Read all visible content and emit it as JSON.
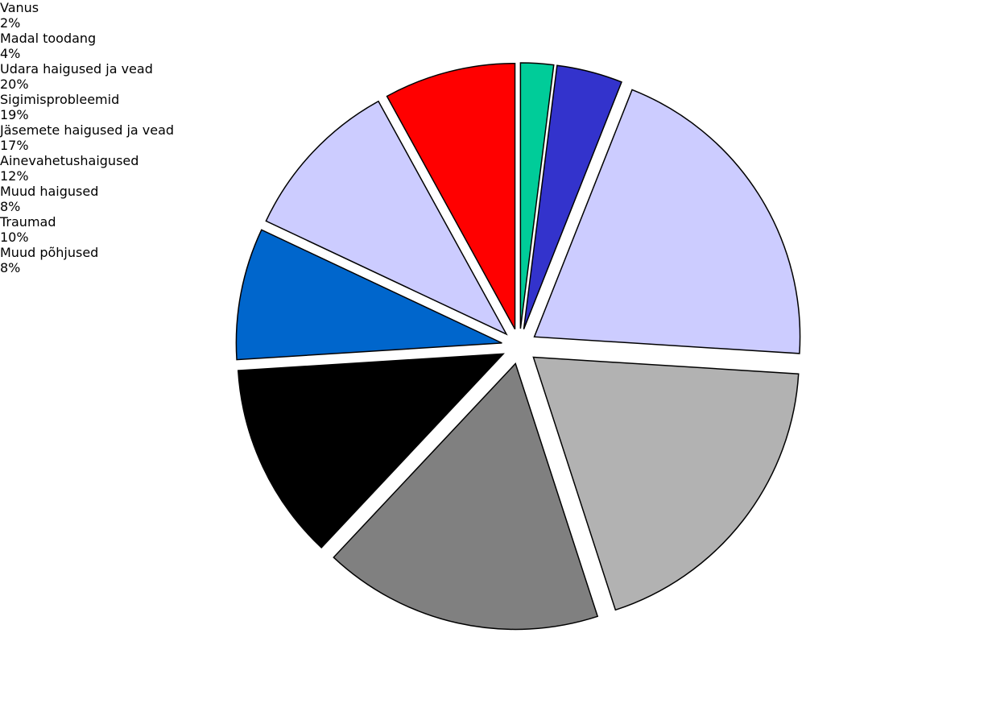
{
  "chart_data": {
    "type": "pie",
    "categories": [
      "Vanus",
      "Madal toodang",
      "Udara haigused ja vead",
      "Sigimisprobleemid",
      "Jäsemete haigused ja vead",
      "Ainevahetushaigused",
      "Muud haigused",
      "Traumad",
      "Muud põhjused"
    ],
    "values": [
      2,
      4,
      20,
      19,
      17,
      12,
      8,
      10,
      8
    ],
    "value_labels": [
      "2%",
      "4%",
      "20%",
      "19%",
      "17%",
      "12%",
      "8%",
      "10%",
      "8%"
    ],
    "colors": [
      "#00cc99",
      "#3333cc",
      "#ccccff",
      "#b2b2b2",
      "#808080",
      "#000000",
      "#0066cc",
      "#ccccff",
      "#ff0000"
    ]
  }
}
